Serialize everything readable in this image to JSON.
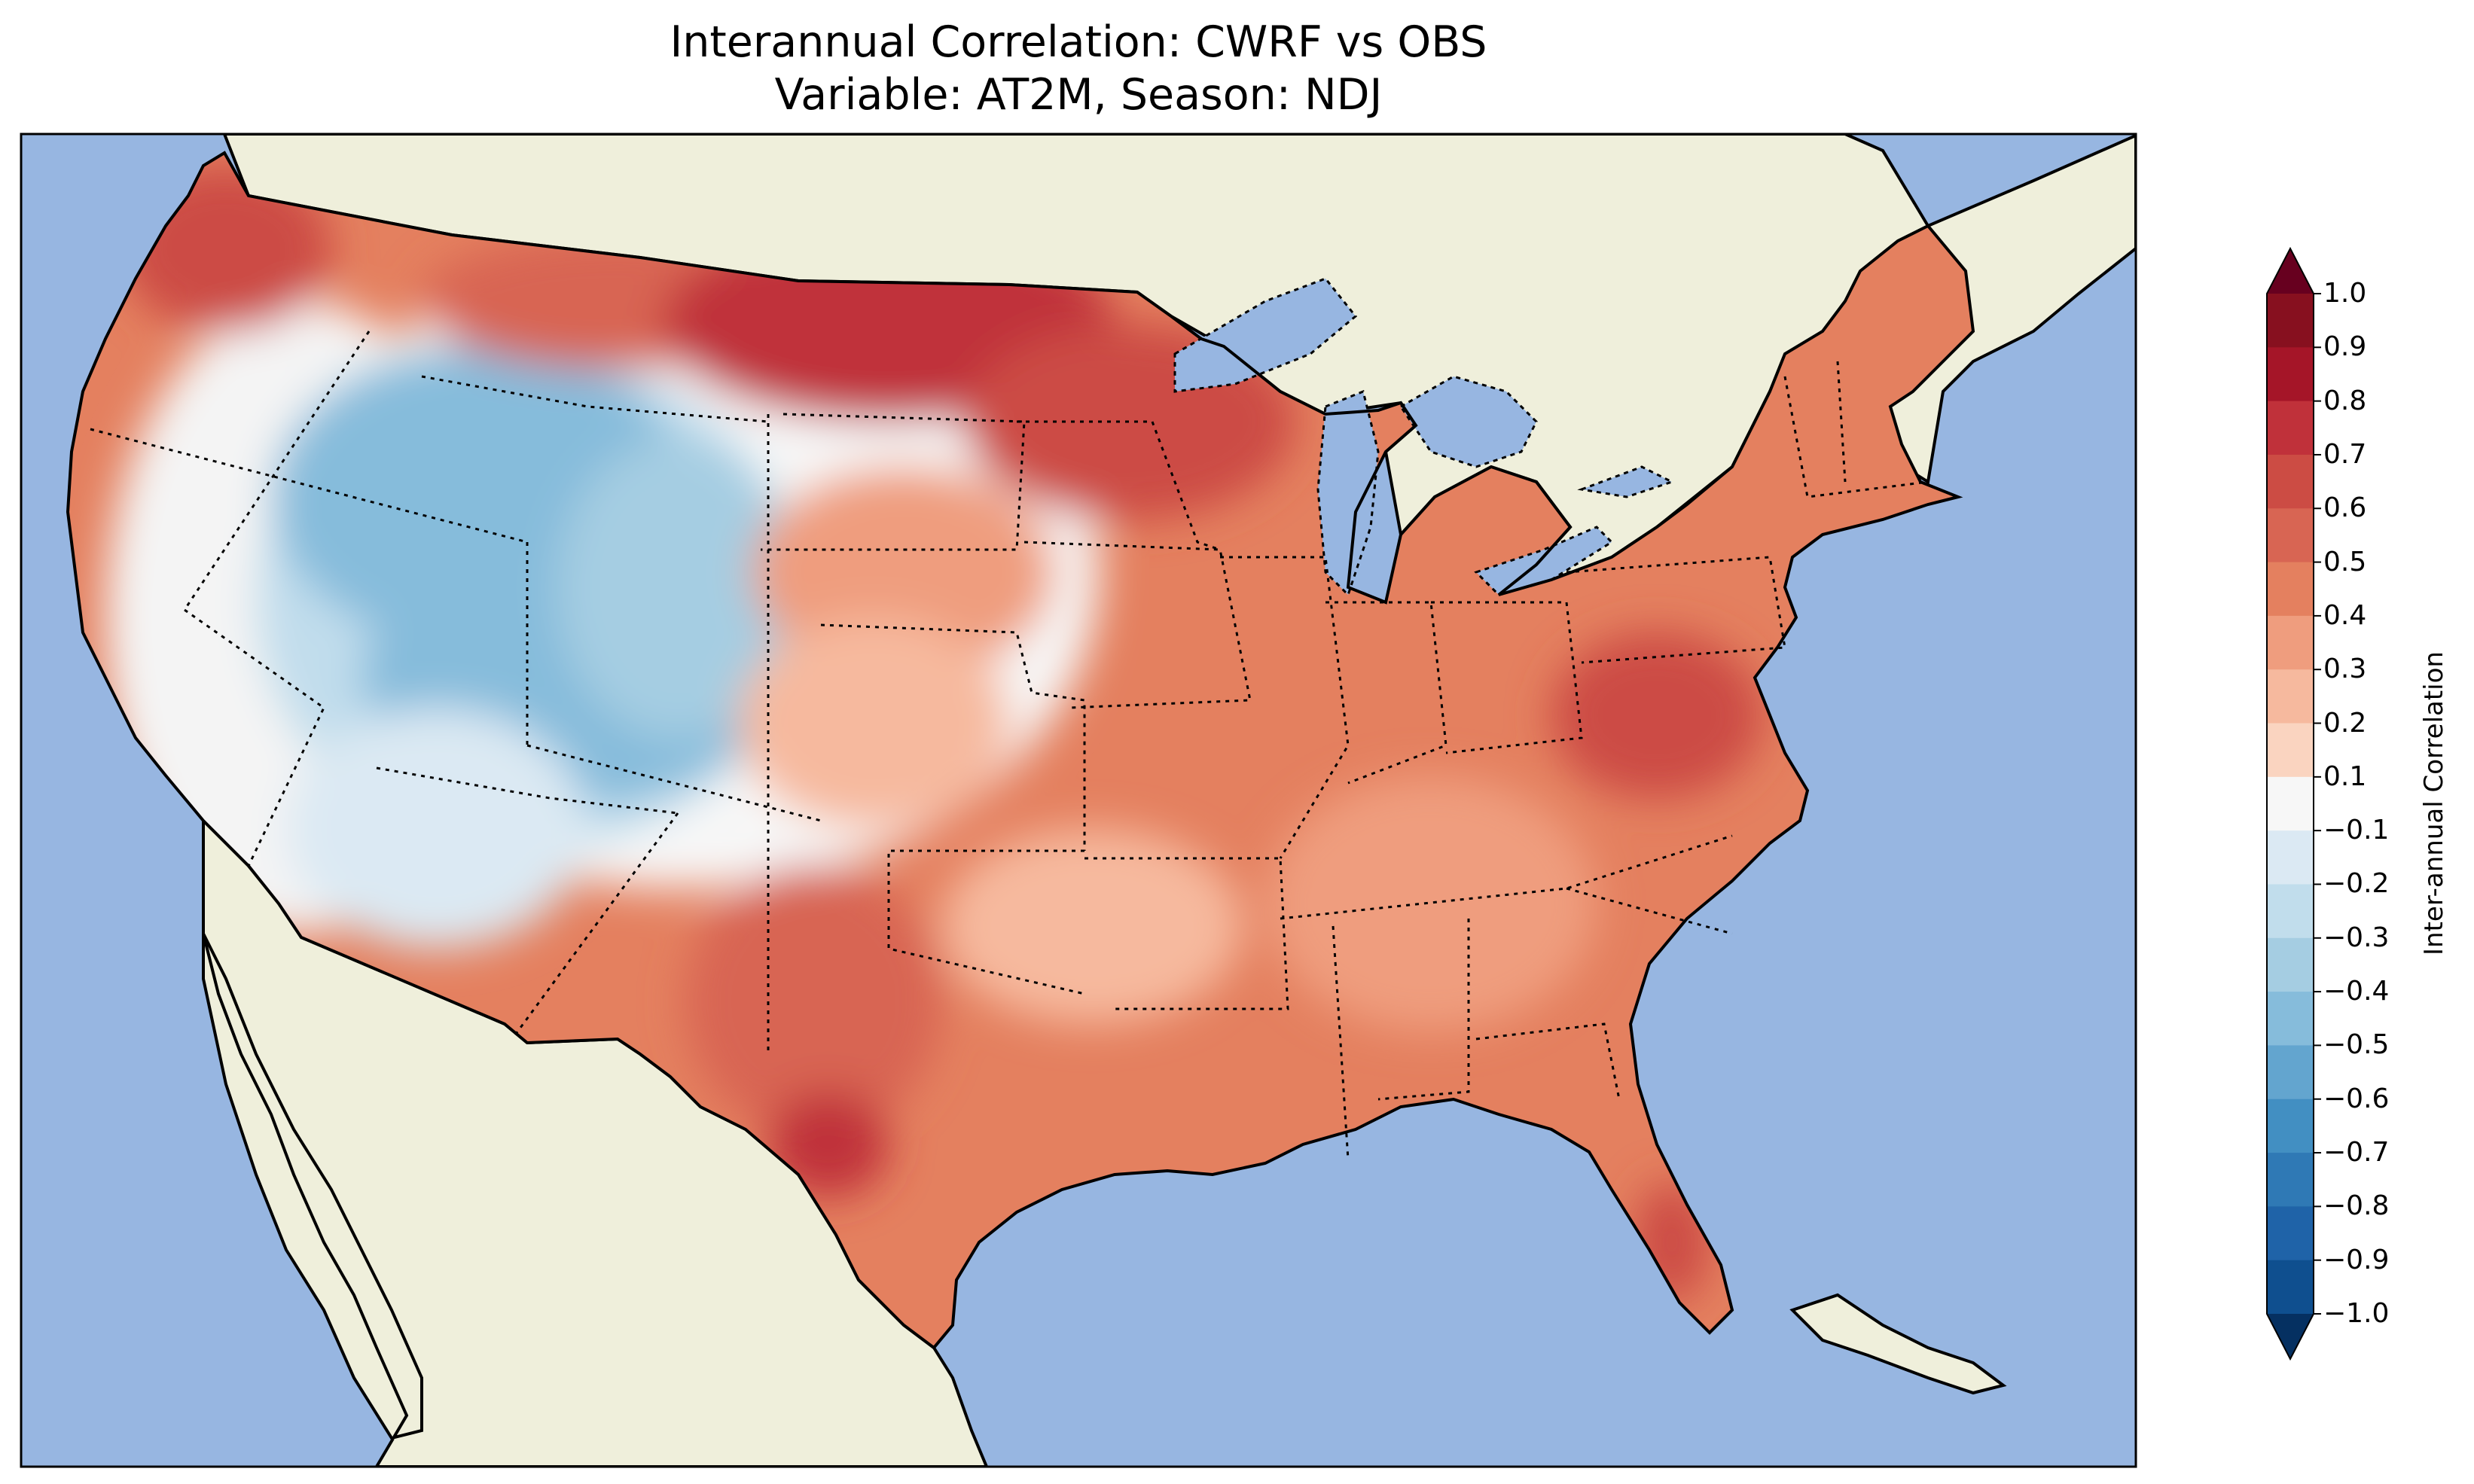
{
  "title": {
    "line1": "Interannual Correlation: CWRF vs OBS",
    "line2": "Variable: AT2M, Season: NDJ"
  },
  "colorbar": {
    "label": "Inter-annual Correlation",
    "ticks": [
      "1.0",
      "0.9",
      "0.8",
      "0.7",
      "0.6",
      "0.5",
      "0.4",
      "0.3",
      "0.2",
      "0.1",
      "−0.1",
      "−0.2",
      "−0.3",
      "−0.4",
      "−0.5",
      "−0.6",
      "−0.7",
      "−0.8",
      "−0.9",
      "−1.0"
    ],
    "colors_top_to_bottom": [
      "#67001f",
      "#87101f",
      "#a51528",
      "#c0313a",
      "#cc4c44",
      "#d86553",
      "#e4805f",
      "#ef9d7e",
      "#f6b99e",
      "#fad4c0",
      "#f7f7f7",
      "#dbe9f3",
      "#c1ddec",
      "#a5cde2",
      "#86bcdb",
      "#63a5cf",
      "#428fc2",
      "#2f79b5",
      "#1f63a8",
      "#0f4f8f",
      "#053061"
    ],
    "extend": "both"
  },
  "map": {
    "ocean_color": "#97b6e1",
    "land_color": "#efefdb",
    "lake_color": "#97b6e1",
    "fields": [
      {
        "region": "Pacific Northwest coast",
        "value": 0.6
      },
      {
        "region": "Northern Rockies",
        "value": 0.6
      },
      {
        "region": "Great Basin / Nevada",
        "value": -0.3
      },
      {
        "region": "Utah / Colorado",
        "value": -0.5
      },
      {
        "region": "California",
        "value": 0.0
      },
      {
        "region": "Southwest (AZ/NM)",
        "value": -0.2
      },
      {
        "region": "Northern Plains",
        "value": 0.7
      },
      {
        "region": "Central Plains",
        "value": 0.3
      },
      {
        "region": "Texas",
        "value": 0.5
      },
      {
        "region": "Midwest",
        "value": 0.6
      },
      {
        "region": "Southeast",
        "value": 0.5
      },
      {
        "region": "Mid-Atlantic",
        "value": 0.7
      },
      {
        "region": "Northeast",
        "value": 0.5
      },
      {
        "region": "Florida",
        "value": 0.6
      }
    ]
  }
}
